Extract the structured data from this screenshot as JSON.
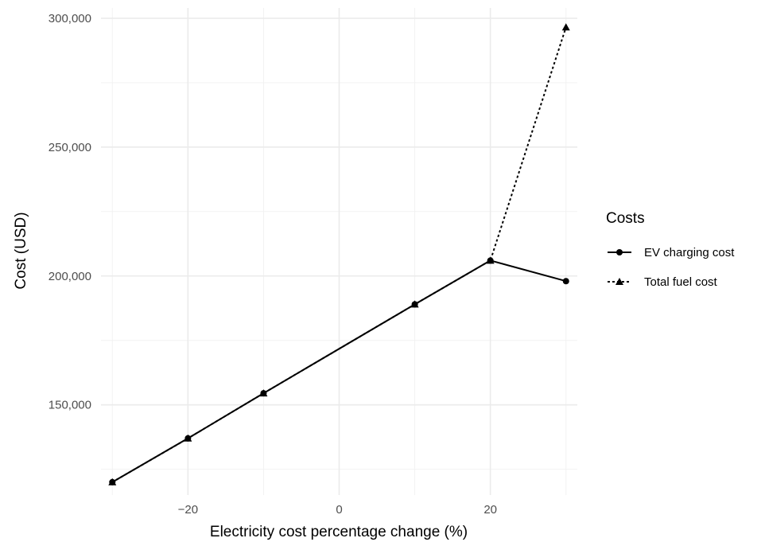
{
  "chart_data": {
    "type": "line",
    "xlabel": "Electricity cost percentage change (%)",
    "ylabel": "Cost (USD)",
    "xlim": [
      -31.5,
      31.5
    ],
    "ylim": [
      115000,
      304000
    ],
    "x_ticks": [
      -20,
      0,
      20
    ],
    "x_tick_labels": [
      "−20",
      "0",
      "20"
    ],
    "x_minor_ticks": [
      -30,
      -10,
      10,
      30
    ],
    "y_ticks": [
      150000,
      200000,
      250000,
      300000
    ],
    "y_tick_labels": [
      "150,000",
      "200,000",
      "250,000",
      "300,000"
    ],
    "y_minor_ticks": [
      125000,
      175000,
      225000,
      275000
    ],
    "grid": true,
    "legend": {
      "title": "Costs",
      "position": "right"
    },
    "series": [
      {
        "name": "EV charging cost",
        "marker": "circle",
        "line_style": "solid",
        "color": "#000000",
        "x": [
          -30,
          -20,
          -10,
          10,
          20,
          30
        ],
        "y": [
          120000,
          137000,
          154500,
          189000,
          206000,
          198000
        ]
      },
      {
        "name": "Total fuel cost",
        "marker": "triangle",
        "line_style": "dotted",
        "color": "#000000",
        "x": [
          -30,
          -20,
          -10,
          10,
          20,
          30
        ],
        "y": [
          120000,
          137000,
          154500,
          189000,
          206000,
          296500
        ]
      }
    ]
  }
}
